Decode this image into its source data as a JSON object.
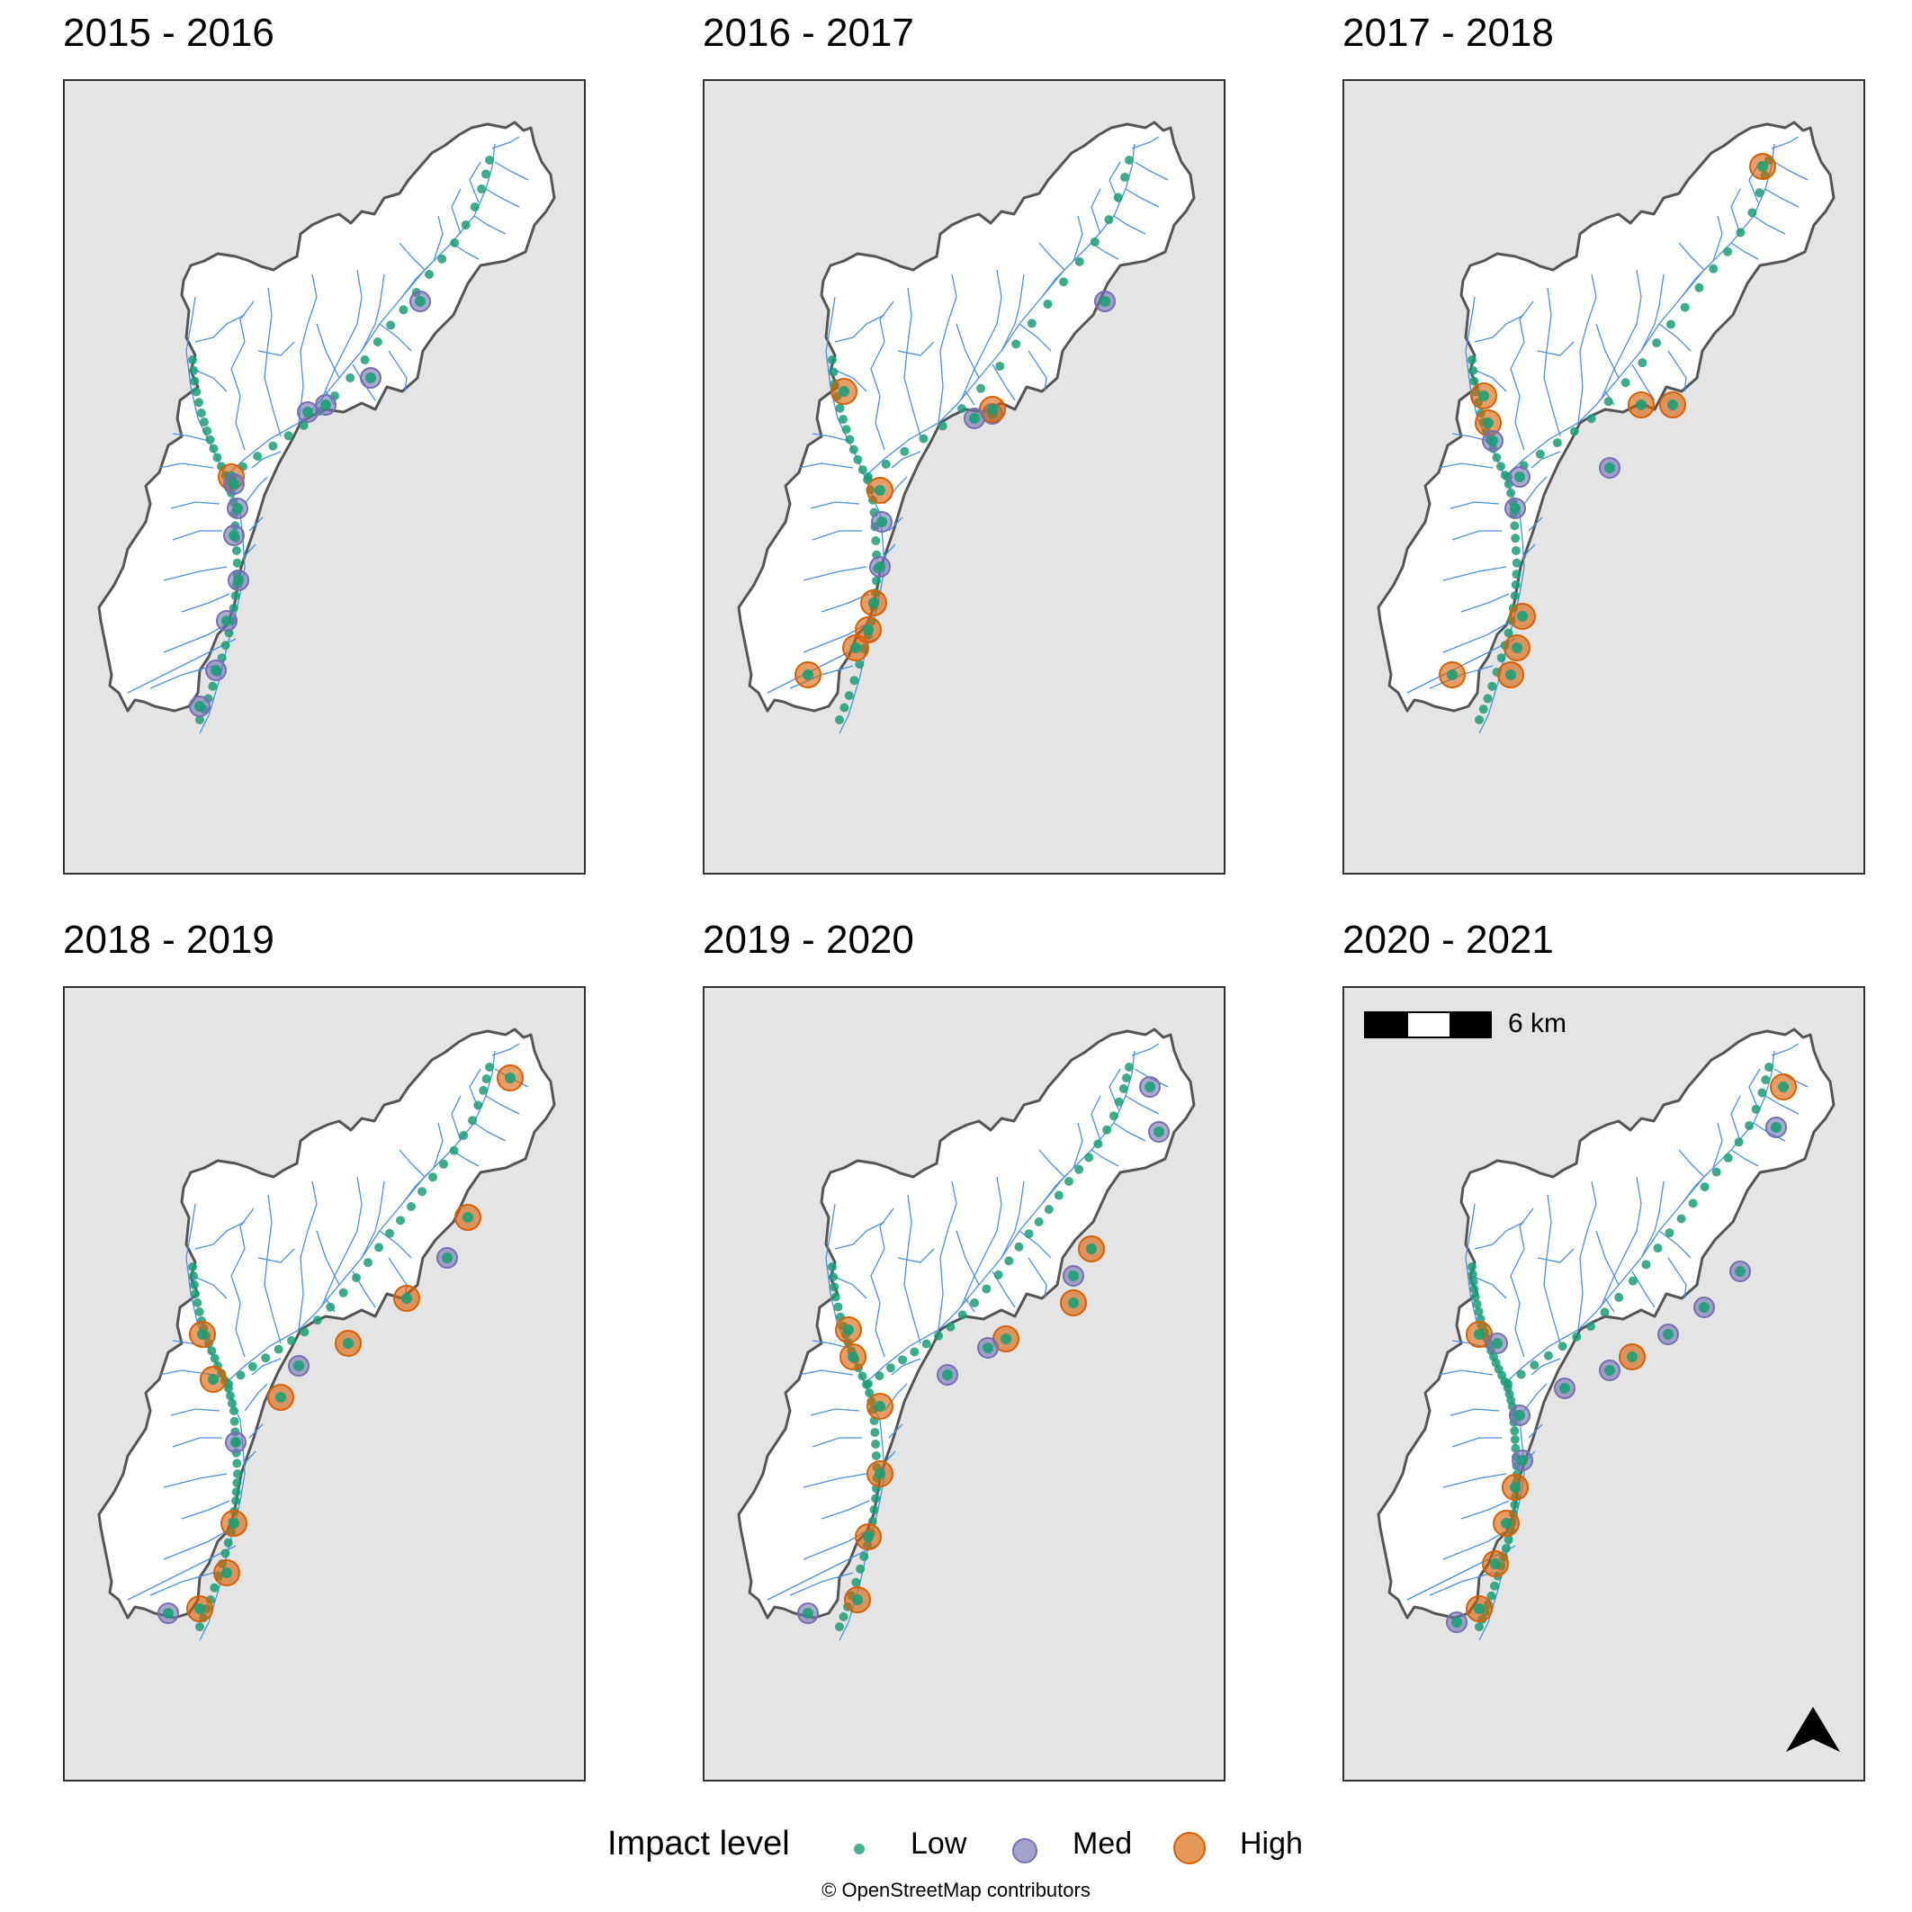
{
  "panels": [
    {
      "title": "2015 - 2016"
    },
    {
      "title": "2016 - 2017"
    },
    {
      "title": "2017 - 2018"
    },
    {
      "title": "2018 - 2019"
    },
    {
      "title": "2019 - 2020"
    },
    {
      "title": "2020 - 2021"
    }
  ],
  "legend": {
    "title": "Impact level",
    "levels": [
      {
        "label": "Low",
        "color": "#1b9e77"
      },
      {
        "label": "Med",
        "color": "#7570b3"
      },
      {
        "label": "High",
        "color": "#d95f02"
      }
    ]
  },
  "scalebar": {
    "label": "6 km"
  },
  "attribution": "© OpenStreetMap contributors",
  "colors": {
    "background": "#e4e4e4",
    "catchment_fill": "#ffffff",
    "catchment_border": "#555555",
    "river": "#4a90e2"
  }
}
